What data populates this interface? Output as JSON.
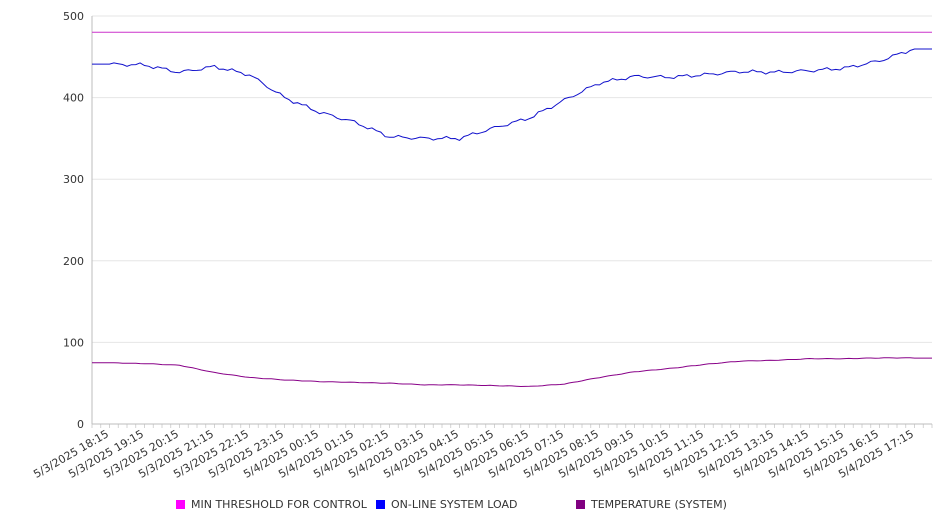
{
  "chart_data": {
    "type": "line",
    "title": "",
    "xlabel": "",
    "ylabel": "",
    "ylim": [
      0,
      500
    ],
    "yticks": [
      0,
      100,
      200,
      300,
      400,
      500
    ],
    "grid": "horizontal",
    "legend_position": "bottom",
    "x_labels": [
      "5/3/2025 18:15",
      "5/3/2025 19:15",
      "5/3/2025 20:15",
      "5/3/2025 21:15",
      "5/3/2025 22:15",
      "5/3/2025 23:15",
      "5/4/2025 00:15",
      "5/4/2025 01:15",
      "5/4/2025 02:15",
      "5/4/2025 03:15",
      "5/4/2025 04:15",
      "5/4/2025 05:15",
      "5/4/2025 06:15",
      "5/4/2025 07:15",
      "5/4/2025 08:15",
      "5/4/2025 09:15",
      "5/4/2025 10:15",
      "5/4/2025 11:15",
      "5/4/2025 12:15",
      "5/4/2025 13:15",
      "5/4/2025 14:15",
      "5/4/2025 15:15",
      "5/4/2025 16:15",
      "5/4/2025 17:15"
    ],
    "x": [
      "5/3/2025 18:15",
      "5/3/2025 19:15",
      "5/3/2025 20:15",
      "5/3/2025 21:15",
      "5/3/2025 22:15",
      "5/3/2025 23:15",
      "5/4/2025 00:15",
      "5/4/2025 01:15",
      "5/4/2025 02:15",
      "5/4/2025 03:15",
      "5/4/2025 04:15",
      "5/4/2025 05:15",
      "5/4/2025 06:15",
      "5/4/2025 07:15",
      "5/4/2025 08:15",
      "5/4/2025 09:15",
      "5/4/2025 10:15",
      "5/4/2025 11:15",
      "5/4/2025 12:15",
      "5/4/2025 13:15",
      "5/4/2025 14:15",
      "5/4/2025 15:15",
      "5/4/2025 16:15",
      "5/4/2025 17:15"
    ],
    "series": [
      {
        "name": "MIN THRESHOLD FOR CONTROL",
        "color": "#cc33cc",
        "values": [
          480,
          480,
          480,
          480,
          480,
          480,
          480,
          480,
          480,
          480,
          480,
          480,
          480,
          480,
          480,
          480,
          480,
          480,
          480,
          480,
          480,
          480,
          480,
          480
        ]
      },
      {
        "name": "ON-LINE SYSTEM LOAD",
        "color": "#1111cc",
        "values": [
          441,
          440,
          431,
          438,
          428,
          400,
          382,
          370,
          352,
          350,
          350,
          363,
          375,
          397,
          418,
          426,
          425,
          428,
          432,
          431,
          433,
          436,
          445,
          460
        ]
      },
      {
        "name": "TEMPERATURE (SYSTEM)",
        "color": "#880088",
        "values": [
          75,
          74,
          72,
          63,
          57,
          54,
          52,
          51,
          50,
          48,
          48,
          47,
          46,
          49,
          57,
          64,
          68,
          73,
          77,
          78,
          80,
          80,
          81,
          81
        ]
      }
    ],
    "legend": [
      {
        "label": "MIN THRESHOLD FOR CONTROL",
        "color": "#ff00ff"
      },
      {
        "label": "ON-LINE SYSTEM LOAD",
        "color": "#0000ff"
      },
      {
        "label": "TEMPERATURE (SYSTEM)",
        "color": "#800080"
      }
    ]
  }
}
